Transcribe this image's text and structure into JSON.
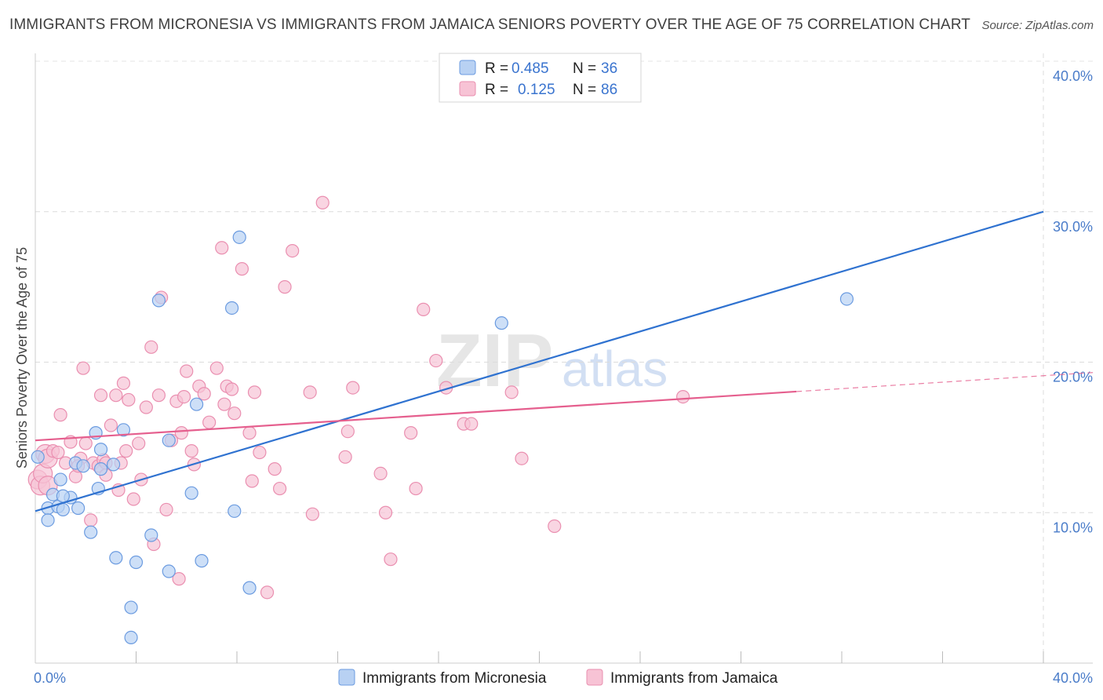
{
  "header": {
    "title": "IMMIGRANTS FROM MICRONESIA VS IMMIGRANTS FROM JAMAICA SENIORS POVERTY OVER THE AGE OF 75 CORRELATION CHART",
    "source": "Source: ZipAtlas.com"
  },
  "colors": {
    "micronesia_fill": "#b8d1f3",
    "micronesia_stroke": "#6b9be0",
    "micronesia_line": "#2f72d0",
    "jamaica_fill": "#f7c3d5",
    "jamaica_stroke": "#ea8fb0",
    "jamaica_line": "#e55f8e",
    "tick_text": "#4a7cc9"
  },
  "legend": {
    "rows": [
      {
        "r_label": "R =",
        "r_value": "0.485",
        "n_label": "N =",
        "n_value": "36"
      },
      {
        "r_label": "R =",
        "r_value": "0.125",
        "n_label": "N =",
        "n_value": "86"
      }
    ]
  },
  "watermark": {
    "zip": "ZIP",
    "atlas": "atlas"
  },
  "chart_data": {
    "type": "scatter",
    "title": "IMMIGRANTS FROM MICRONESIA VS IMMIGRANTS FROM JAMAICA SENIORS POVERTY OVER THE AGE OF 75 CORRELATION CHART",
    "xlabel": "",
    "ylabel": "Seniors Poverty Over the Age of 75",
    "xlim": [
      0,
      40
    ],
    "ylim": [
      0,
      40
    ],
    "x_tick_labels": [
      "0.0%",
      "40.0%"
    ],
    "y_ticks": [
      10,
      20,
      30,
      40
    ],
    "y_tick_labels": [
      "10.0%",
      "20.0%",
      "30.0%",
      "40.0%"
    ],
    "grid": true,
    "legend_position": "top-center",
    "series": [
      {
        "name": "Immigrants from Micronesia",
        "R": 0.485,
        "N": 36,
        "trend": {
          "x": [
            0,
            40
          ],
          "y": [
            10.1,
            30.0
          ],
          "dashed_from": null
        },
        "points": [
          [
            0.1,
            13.7
          ],
          [
            0.5,
            10.3
          ],
          [
            0.5,
            9.5
          ],
          [
            0.7,
            11.2
          ],
          [
            0.9,
            10.4
          ],
          [
            1.0,
            12.2
          ],
          [
            1.1,
            10.2
          ],
          [
            1.4,
            11.0
          ],
          [
            1.6,
            13.3
          ],
          [
            1.7,
            10.3
          ],
          [
            1.9,
            13.1
          ],
          [
            2.2,
            8.7
          ],
          [
            2.4,
            15.3
          ],
          [
            2.5,
            11.6
          ],
          [
            2.6,
            14.2
          ],
          [
            3.1,
            13.2
          ],
          [
            3.2,
            7.0
          ],
          [
            3.5,
            15.5
          ],
          [
            3.8,
            3.7
          ],
          [
            3.8,
            1.7
          ],
          [
            4.0,
            6.7
          ],
          [
            4.6,
            8.5
          ],
          [
            4.9,
            24.1
          ],
          [
            5.3,
            14.8
          ],
          [
            5.3,
            6.1
          ],
          [
            6.2,
            11.3
          ],
          [
            6.4,
            17.2
          ],
          [
            6.6,
            6.8
          ],
          [
            7.8,
            23.6
          ],
          [
            7.9,
            10.1
          ],
          [
            8.1,
            28.3
          ],
          [
            8.5,
            5.0
          ],
          [
            18.5,
            22.6
          ],
          [
            32.2,
            24.2
          ],
          [
            1.1,
            11.1
          ],
          [
            2.6,
            12.9
          ]
        ]
      },
      {
        "name": "Immigrants from Jamaica",
        "R": 0.125,
        "N": 86,
        "trend": {
          "x": [
            0,
            40
          ],
          "y": [
            14.8,
            19.1
          ],
          "dashed_from": 30.2
        },
        "points": [
          [
            0.1,
            12.2
          ],
          [
            0.2,
            11.8
          ],
          [
            0.3,
            12.6
          ],
          [
            0.4,
            13.9
          ],
          [
            0.5,
            13.6
          ],
          [
            0.7,
            14.1
          ],
          [
            0.9,
            14.0
          ],
          [
            1.0,
            16.5
          ],
          [
            1.2,
            13.3
          ],
          [
            1.4,
            14.7
          ],
          [
            1.6,
            12.4
          ],
          [
            1.8,
            13.6
          ],
          [
            1.9,
            19.6
          ],
          [
            2.0,
            14.6
          ],
          [
            2.2,
            9.5
          ],
          [
            2.3,
            13.3
          ],
          [
            2.5,
            13.1
          ],
          [
            2.6,
            17.8
          ],
          [
            2.7,
            13.5
          ],
          [
            2.8,
            12.5
          ],
          [
            3.0,
            15.8
          ],
          [
            3.2,
            17.8
          ],
          [
            3.3,
            11.5
          ],
          [
            3.5,
            18.6
          ],
          [
            3.6,
            14.1
          ],
          [
            3.7,
            17.5
          ],
          [
            3.9,
            10.9
          ],
          [
            4.1,
            14.6
          ],
          [
            4.2,
            12.2
          ],
          [
            4.4,
            17.0
          ],
          [
            4.6,
            21.0
          ],
          [
            4.7,
            7.9
          ],
          [
            4.9,
            17.8
          ],
          [
            5.0,
            24.3
          ],
          [
            5.2,
            10.2
          ],
          [
            5.4,
            14.8
          ],
          [
            5.6,
            17.4
          ],
          [
            5.7,
            5.6
          ],
          [
            5.8,
            15.3
          ],
          [
            5.9,
            17.7
          ],
          [
            6.0,
            19.4
          ],
          [
            6.2,
            14.1
          ],
          [
            6.3,
            13.2
          ],
          [
            6.5,
            18.4
          ],
          [
            6.7,
            17.9
          ],
          [
            6.9,
            16.0
          ],
          [
            7.2,
            19.6
          ],
          [
            7.4,
            27.6
          ],
          [
            7.5,
            17.2
          ],
          [
            7.6,
            18.4
          ],
          [
            7.8,
            18.2
          ],
          [
            7.9,
            16.6
          ],
          [
            8.2,
            26.2
          ],
          [
            8.5,
            15.3
          ],
          [
            8.6,
            12.1
          ],
          [
            8.7,
            18.0
          ],
          [
            8.9,
            14.0
          ],
          [
            9.2,
            4.7
          ],
          [
            9.5,
            12.9
          ],
          [
            9.7,
            11.6
          ],
          [
            9.9,
            25.0
          ],
          [
            10.2,
            27.4
          ],
          [
            10.9,
            18.0
          ],
          [
            11.0,
            9.9
          ],
          [
            11.4,
            30.6
          ],
          [
            12.3,
            13.7
          ],
          [
            12.4,
            15.4
          ],
          [
            12.6,
            18.3
          ],
          [
            13.7,
            12.6
          ],
          [
            13.9,
            10.0
          ],
          [
            14.1,
            6.9
          ],
          [
            14.9,
            15.3
          ],
          [
            15.1,
            11.6
          ],
          [
            15.4,
            23.5
          ],
          [
            15.9,
            20.1
          ],
          [
            16.3,
            18.3
          ],
          [
            17.0,
            15.9
          ],
          [
            17.3,
            15.9
          ],
          [
            18.9,
            18.0
          ],
          [
            19.3,
            13.6
          ],
          [
            20.6,
            9.1
          ],
          [
            25.7,
            17.7
          ],
          [
            2.8,
            13.3
          ],
          [
            3.4,
            13.3
          ],
          [
            0.5,
            11.8
          ],
          [
            1.7,
            13.1
          ]
        ]
      }
    ]
  }
}
